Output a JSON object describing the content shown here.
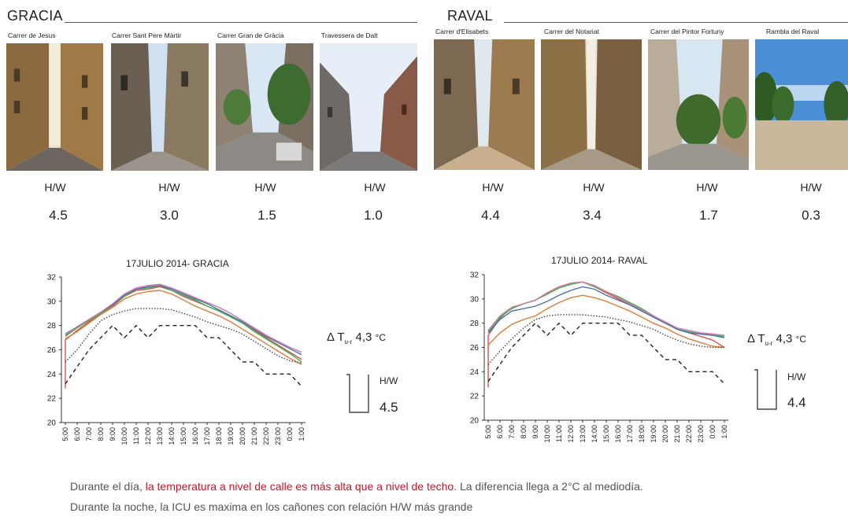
{
  "regions": [
    {
      "title": "GRACIA",
      "streets": [
        {
          "name": "Carrer de Jesus",
          "hw_label": "H/W",
          "hw_value": "4.5"
        },
        {
          "name": "Carrer Sant Pere Màrtir",
          "hw_label": "H/W",
          "hw_value": "3.0"
        },
        {
          "name": "Carrer Gran de Gràcia",
          "hw_label": "H/W",
          "hw_value": "1.5"
        },
        {
          "name": "Travessera de Dalt",
          "hw_label": "H/W",
          "hw_value": "1.0"
        }
      ]
    },
    {
      "title": "RAVAL",
      "streets": [
        {
          "name": "Carrer d'Elisabets",
          "hw_label": "H/W",
          "hw_value": "4.4"
        },
        {
          "name": "Carrer del Notariat",
          "hw_label": "H/W",
          "hw_value": "3.4"
        },
        {
          "name": "Carrer del Pintor Fortuny",
          "hw_label": "H/W",
          "hw_value": "1.7"
        },
        {
          "name": "Rambla del Raval",
          "hw_label": "H/W",
          "hw_value": "0.3"
        }
      ]
    }
  ],
  "chart_data": [
    {
      "type": "line",
      "title": "17JULIO 2014- GRACIA",
      "categories": [
        "5:00",
        "6:00",
        "7:00",
        "8:00",
        "9:00",
        "10:00",
        "11:00",
        "12:00",
        "13:00",
        "14:00",
        "15:00",
        "16:00",
        "17:00",
        "18:00",
        "19:00",
        "20:00",
        "21:00",
        "22:00",
        "23:00",
        "0:00",
        "1:00"
      ],
      "ylim": [
        20,
        32
      ],
      "yticks": [
        20,
        22,
        24,
        26,
        28,
        30,
        32
      ],
      "series": [
        {
          "color": "#d9534f",
          "values": [
            26.8,
            27.6,
            28.3,
            29.0,
            29.6,
            30.4,
            30.9,
            31.0,
            31.2,
            30.9,
            30.4,
            30.0,
            29.6,
            29.2,
            28.8,
            28.2,
            27.6,
            27.0,
            26.4,
            25.8,
            25.2
          ],
          "start_from": 22.8
        },
        {
          "color": "#3cb44b",
          "values": [
            27.1,
            27.8,
            28.4,
            29.0,
            29.7,
            30.4,
            31.0,
            31.1,
            31.3,
            30.9,
            30.5,
            30.1,
            29.6,
            29.2,
            28.7,
            28.2,
            27.5,
            26.9,
            26.3,
            25.7,
            25.0
          ]
        },
        {
          "color": "#4c72b0",
          "values": [
            27.3,
            27.9,
            28.5,
            29.1,
            29.7,
            30.5,
            31.0,
            31.2,
            31.3,
            31.0,
            30.6,
            30.2,
            29.8,
            29.3,
            28.8,
            28.3,
            27.7,
            27.1,
            26.6,
            26.1,
            25.6
          ]
        },
        {
          "color": "#cc79a7",
          "values": [
            27.2,
            27.9,
            28.5,
            29.1,
            29.8,
            30.6,
            31.1,
            31.3,
            31.4,
            31.1,
            30.7,
            30.3,
            29.9,
            29.5,
            29.0,
            28.4,
            27.8,
            27.2,
            26.7,
            26.2,
            25.8
          ]
        },
        {
          "color": "#e07b39",
          "values": [
            26.9,
            27.5,
            28.2,
            28.9,
            29.5,
            30.2,
            30.6,
            30.8,
            30.9,
            30.6,
            30.1,
            29.6,
            29.2,
            28.8,
            28.3,
            27.7,
            27.1,
            26.5,
            25.9,
            25.3,
            24.8
          ]
        },
        {
          "color": "#444444",
          "dash": "1.5,2",
          "values": [
            25.0,
            26.0,
            27.3,
            28.4,
            28.9,
            29.2,
            29.4,
            29.4,
            29.4,
            29.3,
            29.0,
            28.7,
            28.3,
            28.0,
            27.7,
            27.3,
            26.7,
            26.1,
            25.5,
            25.1,
            24.9
          ]
        },
        {
          "color": "#222222",
          "dash": "5,4",
          "values": [
            23.2,
            24.6,
            26.0,
            27.0,
            28.0,
            27.0,
            28.0,
            27.0,
            28.0,
            28.0,
            28.0,
            28.0,
            27.0,
            27.0,
            26.0,
            25.0,
            25.0,
            24.0,
            24.0,
            24.0,
            23.0
          ]
        }
      ],
      "delta_prefix": "Δ T",
      "delta_sub": "u-r",
      "delta_value": "4,3",
      "delta_unit": "°C",
      "hw_label": "H/W",
      "hw_value": "4.5"
    },
    {
      "type": "line",
      "title": "17JULIO 2014- RAVAL",
      "categories": [
        "5:00",
        "6:00",
        "7:00",
        "8:00",
        "9:00",
        "10:00",
        "11:00",
        "12:00",
        "13:00",
        "14:00",
        "15:00",
        "16:00",
        "17:00",
        "18:00",
        "19:00",
        "20:00",
        "21:00",
        "22:00",
        "23:00",
        "0:00",
        "1:00"
      ],
      "ylim": [
        20,
        32
      ],
      "yticks": [
        20,
        22,
        24,
        26,
        28,
        30,
        32
      ],
      "series": [
        {
          "color": "#d9534f",
          "values": [
            27.0,
            28.4,
            29.3,
            29.6,
            29.9,
            30.5,
            31.0,
            31.3,
            31.4,
            31.0,
            30.5,
            30.0,
            29.5,
            29.0,
            28.5,
            28.0,
            27.5,
            27.2,
            26.9,
            26.6,
            26.0
          ],
          "start_from": 22.7
        },
        {
          "color": "#3cb44b",
          "values": [
            27.3,
            28.5,
            29.2,
            29.6,
            29.9,
            30.4,
            30.9,
            31.2,
            31.4,
            31.0,
            30.6,
            30.2,
            29.7,
            29.2,
            28.6,
            28.0,
            27.5,
            27.3,
            27.1,
            27.0,
            26.9
          ]
        },
        {
          "color": "#4c72b0",
          "values": [
            27.2,
            28.3,
            29.0,
            29.2,
            29.4,
            29.8,
            30.3,
            30.7,
            31.0,
            30.8,
            30.3,
            29.9,
            29.5,
            29.0,
            28.5,
            28.0,
            27.5,
            27.2,
            27.1,
            27.0,
            26.8
          ]
        },
        {
          "color": "#cc79a7",
          "values": [
            27.4,
            28.6,
            29.3,
            29.6,
            29.9,
            30.5,
            31.0,
            31.3,
            31.4,
            31.1,
            30.6,
            30.1,
            29.6,
            29.1,
            28.6,
            28.1,
            27.6,
            27.4,
            27.2,
            27.1,
            27.0
          ]
        },
        {
          "color": "#e07b39",
          "values": [
            26.2,
            27.2,
            27.9,
            28.3,
            28.6,
            29.2,
            29.7,
            30.1,
            30.3,
            30.1,
            29.8,
            29.4,
            29.0,
            28.5,
            28.0,
            27.6,
            27.1,
            26.7,
            26.4,
            26.1,
            26.0
          ]
        },
        {
          "color": "#444444",
          "dash": "1.5,2",
          "values": [
            24.6,
            25.7,
            26.7,
            27.6,
            28.3,
            28.6,
            28.7,
            28.7,
            28.7,
            28.6,
            28.5,
            28.3,
            28.1,
            27.8,
            27.5,
            27.0,
            26.6,
            26.3,
            26.1,
            26.0,
            26.0
          ]
        },
        {
          "color": "#222222",
          "dash": "5,4",
          "values": [
            23.2,
            24.6,
            26.0,
            27.0,
            28.0,
            27.0,
            28.0,
            27.0,
            28.0,
            28.0,
            28.0,
            28.0,
            27.0,
            27.0,
            26.0,
            25.0,
            25.0,
            24.0,
            24.0,
            24.0,
            23.0
          ]
        }
      ],
      "delta_prefix": "Δ T",
      "delta_sub": "u-r",
      "delta_value": "4,3",
      "delta_unit": "°C",
      "hw_label": "H/W",
      "hw_value": "4.4"
    }
  ],
  "caption": {
    "line1_a": "Durante el día, ",
    "line1_highlight": "la temperatura a nivel de calle es más alta que a nivel de techo",
    "line1_b": ". La diferencia llega a 2°C al mediodía.",
    "line2": "Durante la noche, la ICU es maxima en los cañones con relación H/W  más grande"
  },
  "colors": {
    "highlight": "#c0182b",
    "caption_text": "#555555"
  }
}
